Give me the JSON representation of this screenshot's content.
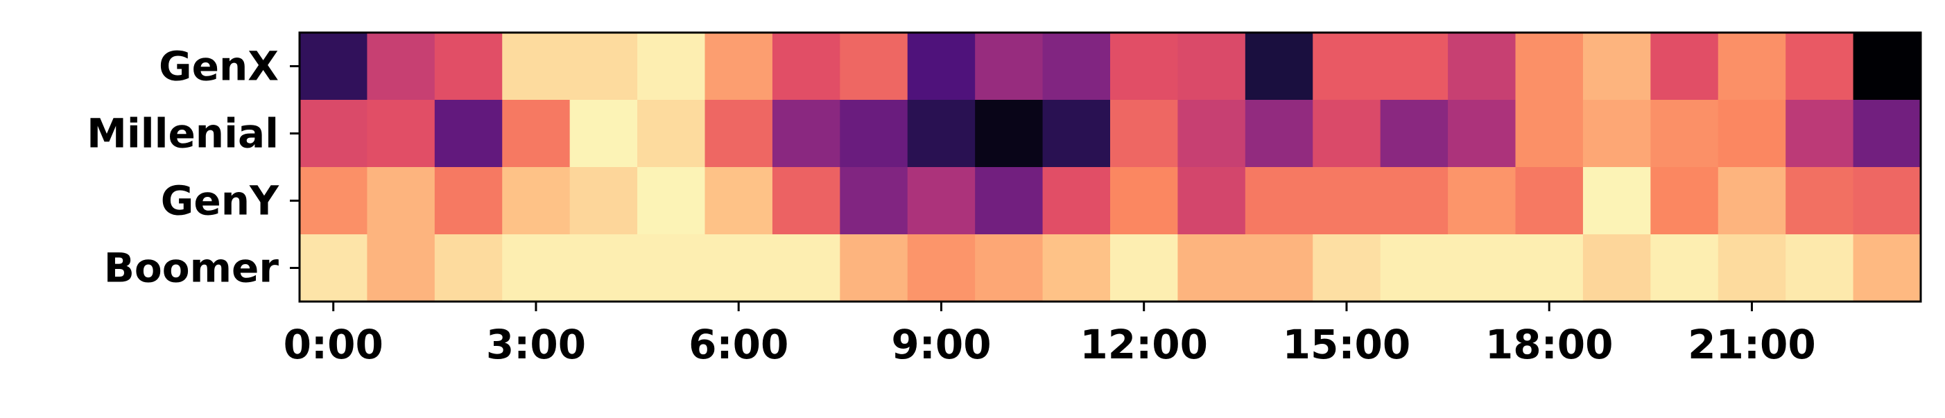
{
  "chart_data": {
    "type": "heatmap",
    "title": "",
    "xlabel": "",
    "ylabel": "",
    "rows": [
      "GenX",
      "Millenial",
      "GenY",
      "Boomer"
    ],
    "hours": 24,
    "xticks": [
      {
        "hour": 0,
        "label": "0:00"
      },
      {
        "hour": 3,
        "label": "3:00"
      },
      {
        "hour": 6,
        "label": "6:00"
      },
      {
        "hour": 9,
        "label": "9:00"
      },
      {
        "hour": 12,
        "label": "12:00"
      },
      {
        "hour": 15,
        "label": "15:00"
      },
      {
        "hour": 18,
        "label": "18:00"
      },
      {
        "hour": 21,
        "label": "21:00"
      }
    ],
    "colormap": "magma",
    "colorbar": false,
    "grid": false,
    "values": [
      [
        0.18,
        0.55,
        0.62,
        0.93,
        0.93,
        0.97,
        0.8,
        0.62,
        0.68,
        0.25,
        0.43,
        0.38,
        0.62,
        0.6,
        0.12,
        0.65,
        0.65,
        0.55,
        0.77,
        0.85,
        0.62,
        0.77,
        0.65,
        0.0
      ],
      [
        0.6,
        0.62,
        0.3,
        0.72,
        0.98,
        0.93,
        0.68,
        0.4,
        0.32,
        0.16,
        0.04,
        0.16,
        0.68,
        0.55,
        0.42,
        0.6,
        0.4,
        0.48,
        0.77,
        0.82,
        0.77,
        0.75,
        0.52,
        0.34
      ],
      [
        0.77,
        0.85,
        0.72,
        0.88,
        0.92,
        0.98,
        0.88,
        0.67,
        0.38,
        0.48,
        0.34,
        0.62,
        0.75,
        0.58,
        0.72,
        0.72,
        0.72,
        0.78,
        0.72,
        0.98,
        0.75,
        0.85,
        0.7,
        0.68
      ],
      [
        0.95,
        0.85,
        0.93,
        0.97,
        0.97,
        0.97,
        0.97,
        0.97,
        0.85,
        0.78,
        0.82,
        0.88,
        0.97,
        0.85,
        0.85,
        0.94,
        0.97,
        0.97,
        0.97,
        0.92,
        0.97,
        0.93,
        0.96,
        0.86
      ]
    ]
  }
}
